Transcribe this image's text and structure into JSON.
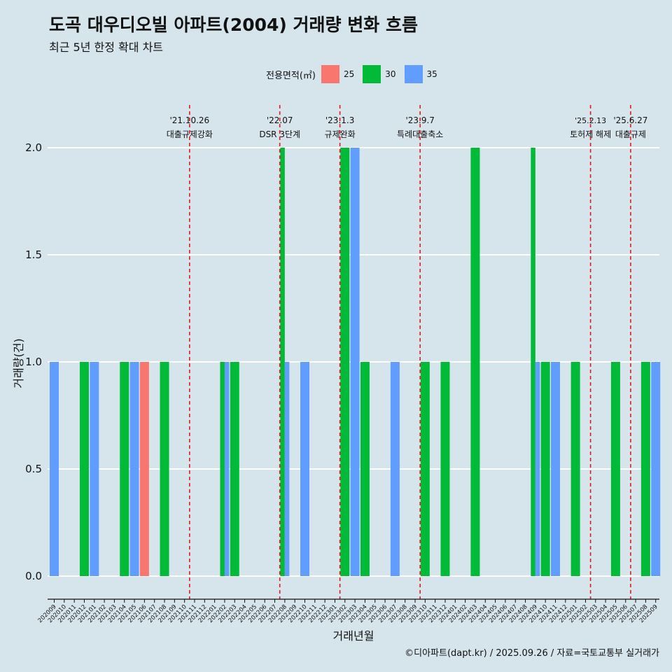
{
  "title": "도곡 대우디오빌 아파트(2004) 거래량 변화 흐름",
  "subtitle": "최근 5년 한정 확대 차트",
  "caption": "©디아파트(dapt.kr) / 2025.09.26 / 자료=국토교통부 실거래가",
  "legend": {
    "title": "전용면적(㎡)",
    "items": [
      {
        "label": "25",
        "color": "#f8766d"
      },
      {
        "label": "30",
        "color": "#00ba38"
      },
      {
        "label": "35",
        "color": "#619cff"
      }
    ]
  },
  "chart_data": {
    "type": "bar",
    "title": "도곡 대우디오빌 아파트(2004) 거래량 변화 흐름",
    "xlabel": "거래년월",
    "ylabel": "거래량(건)",
    "ylim": [
      -0.17,
      2.2
    ],
    "yticks": [
      0.0,
      0.5,
      1.0,
      1.5,
      2.0
    ],
    "ytick_labels": [
      "0.0",
      "0.5",
      "1.0",
      "1.5",
      "2.0"
    ],
    "categories": [
      "202009",
      "202010",
      "202011",
      "202012",
      "202101",
      "202102",
      "202103",
      "202104",
      "202105",
      "202106",
      "202107",
      "202108",
      "202109",
      "202110",
      "202111",
      "202112",
      "202201",
      "202202",
      "202203",
      "202204",
      "202205",
      "202206",
      "202207",
      "202208",
      "202209",
      "202210",
      "202211",
      "202212",
      "202301",
      "202302",
      "202303",
      "202304",
      "202305",
      "202306",
      "202307",
      "202308",
      "202309",
      "202310",
      "202311",
      "202312",
      "202401",
      "202402",
      "202403",
      "202404",
      "202405",
      "202406",
      "202407",
      "202408",
      "202409",
      "202410",
      "202411",
      "202412",
      "202501",
      "202502",
      "202503",
      "202504",
      "202505",
      "202506",
      "202507",
      "202508",
      "202509"
    ],
    "bars": [
      {
        "month": "202009",
        "size": "35",
        "value": 1
      },
      {
        "month": "202012",
        "size": "30",
        "value": 1
      },
      {
        "month": "202101",
        "size": "35",
        "value": 1
      },
      {
        "month": "202104",
        "size": "30",
        "value": 1
      },
      {
        "month": "202105",
        "size": "35",
        "value": 1
      },
      {
        "month": "202106",
        "size": "25",
        "value": 1
      },
      {
        "month": "202108",
        "size": "30",
        "value": 1
      },
      {
        "month": "202202",
        "size": "30",
        "value": 1
      },
      {
        "month": "202202",
        "size": "35",
        "value": 1
      },
      {
        "month": "202203",
        "size": "30",
        "value": 1
      },
      {
        "month": "202208",
        "size": "30",
        "value": 2
      },
      {
        "month": "202208",
        "size": "35",
        "value": 1
      },
      {
        "month": "202210",
        "size": "35",
        "value": 1
      },
      {
        "month": "202302",
        "size": "30",
        "value": 2
      },
      {
        "month": "202303",
        "size": "35",
        "value": 2
      },
      {
        "month": "202304",
        "size": "30",
        "value": 1
      },
      {
        "month": "202307",
        "size": "35",
        "value": 1
      },
      {
        "month": "202310",
        "size": "30",
        "value": 1
      },
      {
        "month": "202312",
        "size": "30",
        "value": 1
      },
      {
        "month": "202403",
        "size": "30",
        "value": 2
      },
      {
        "month": "202409",
        "size": "30",
        "value": 2
      },
      {
        "month": "202409",
        "size": "35",
        "value": 1
      },
      {
        "month": "202410",
        "size": "30",
        "value": 1
      },
      {
        "month": "202411",
        "size": "35",
        "value": 1
      },
      {
        "month": "202501",
        "size": "30",
        "value": 1
      },
      {
        "month": "202505",
        "size": "30",
        "value": 1
      },
      {
        "month": "202508",
        "size": "30",
        "value": 1
      },
      {
        "month": "202509",
        "size": "35",
        "value": 1
      }
    ],
    "events": [
      {
        "month_pos": 13.5,
        "date": "'21.10.26",
        "label": "대출규제강화"
      },
      {
        "month_pos": 22.5,
        "date": "'22.07",
        "label": "DSR 3단계"
      },
      {
        "month_pos": 28.5,
        "date": "'23.1.3",
        "label": "규제완화"
      },
      {
        "month_pos": 36.5,
        "date": "'23.9.7",
        "label": "특례대출축소"
      },
      {
        "month_pos": 53.5,
        "date": "'25.2.13",
        "label": "토허제 해제"
      },
      {
        "month_pos": 57.5,
        "date": "'25.6.27",
        "label": "대출규제"
      }
    ],
    "event_color": "#e41a1c"
  }
}
